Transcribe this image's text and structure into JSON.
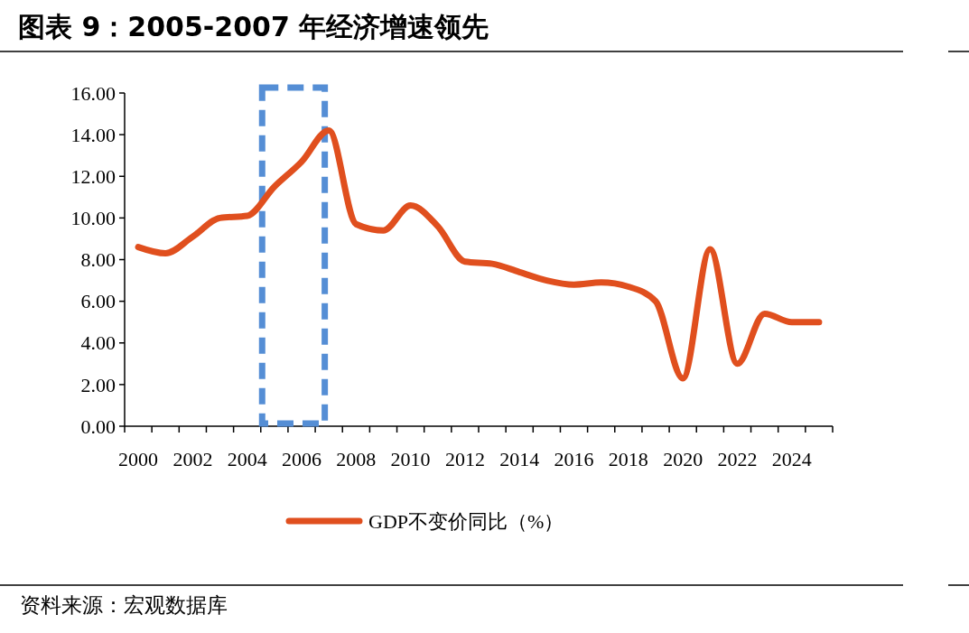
{
  "chart_data": {
    "type": "line",
    "title": "图表 9：2005-2007 年经济增速领先",
    "categories": [
      "2000",
      null,
      "2002",
      null,
      "2004",
      null,
      "2006",
      null,
      "2008",
      null,
      "2010",
      null,
      "2012",
      null,
      "2014",
      null,
      "2016",
      null,
      "2018",
      null,
      "2020",
      null,
      "2022",
      null,
      "2024",
      null
    ],
    "series": [
      {
        "name": "GDP不变价同比（%）",
        "color": "#e04f1e",
        "values": [
          8.6,
          8.3,
          9.1,
          10.0,
          10.1,
          11.5,
          12.7,
          14.2,
          9.7,
          9.4,
          10.6,
          9.6,
          7.9,
          7.8,
          7.4,
          7.0,
          6.8,
          6.9,
          6.7,
          6.0,
          2.3,
          8.5,
          3.0,
          5.4,
          5.0,
          5.0
        ]
      }
    ],
    "ylim": [
      0,
      16
    ],
    "yticks": [
      {
        "value": 0,
        "label": "0.00"
      },
      {
        "value": 2,
        "label": "2.00"
      },
      {
        "value": 4,
        "label": "4.00"
      },
      {
        "value": 6,
        "label": "6.00"
      },
      {
        "value": 8,
        "label": "8.00"
      },
      {
        "value": 10,
        "label": "10.00"
      },
      {
        "value": 12,
        "label": "12.00"
      },
      {
        "value": 14,
        "label": "14.00"
      },
      {
        "value": 16,
        "label": "16.00"
      }
    ],
    "legend": "bottom",
    "grid": false,
    "marker": "none",
    "line_style": "solid",
    "annotations": [
      "资料来源：宏观数据库"
    ]
  }
}
